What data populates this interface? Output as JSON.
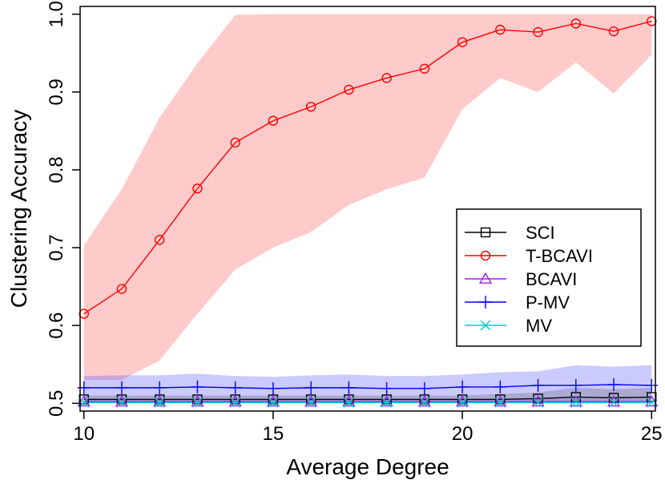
{
  "chart_data": {
    "type": "line",
    "title": "",
    "xlabel": "Average Degree",
    "ylabel": "Clustering Accuracy",
    "xlim": [
      9.9,
      25.1
    ],
    "ylim": [
      0.49,
      1.01
    ],
    "xticks": [
      10,
      15,
      20,
      25
    ],
    "xtick_labels": [
      "10",
      "15",
      "20",
      "25"
    ],
    "yticks": [
      0.5,
      0.6,
      0.7,
      0.8,
      0.9,
      1.0
    ],
    "ytick_labels": [
      "0.5",
      "0.6",
      "0.7",
      "0.8",
      "0.9",
      "1.0"
    ],
    "grid": false,
    "legend_position": "center-right",
    "x": [
      10,
      11,
      12,
      13,
      14,
      15,
      16,
      17,
      18,
      19,
      20,
      21,
      22,
      23,
      24,
      25
    ],
    "series": [
      {
        "name": "SCI",
        "marker": "square",
        "color": "#000000",
        "band_color": "rgba(70,70,70,0.25)",
        "values": [
          0.505,
          0.505,
          0.505,
          0.505,
          0.505,
          0.505,
          0.505,
          0.505,
          0.505,
          0.505,
          0.505,
          0.505,
          0.506,
          0.508,
          0.507,
          0.508
        ],
        "lower": [
          0.5,
          0.5,
          0.5,
          0.5,
          0.5,
          0.5,
          0.5,
          0.5,
          0.5,
          0.5,
          0.5,
          0.5,
          0.5,
          0.5,
          0.5,
          0.5
        ],
        "upper": [
          0.51,
          0.51,
          0.51,
          0.51,
          0.51,
          0.51,
          0.51,
          0.51,
          0.51,
          0.51,
          0.51,
          0.512,
          0.514,
          0.52,
          0.518,
          0.52
        ]
      },
      {
        "name": "T-BCAVI",
        "marker": "circle",
        "color": "#ff0000",
        "band_color": "rgba(255,90,90,0.32)",
        "values": [
          0.615,
          0.647,
          0.71,
          0.776,
          0.835,
          0.863,
          0.881,
          0.903,
          0.918,
          0.93,
          0.964,
          0.98,
          0.977,
          0.988,
          0.978,
          0.991
        ],
        "lower": [
          0.53,
          0.53,
          0.555,
          0.615,
          0.672,
          0.7,
          0.72,
          0.755,
          0.775,
          0.79,
          0.878,
          0.918,
          0.9,
          0.938,
          0.898,
          0.948
        ],
        "upper": [
          0.703,
          0.775,
          0.867,
          0.937,
          0.999,
          1.0,
          1.0,
          1.0,
          1.0,
          1.0,
          1.0,
          1.0,
          1.0,
          1.0,
          1.0,
          1.0
        ]
      },
      {
        "name": "BCAVI",
        "marker": "triangle",
        "color": "#a020f0",
        "band_color": "rgba(160,32,240,0.18)",
        "values": [
          0.502,
          0.502,
          0.502,
          0.502,
          0.502,
          0.502,
          0.502,
          0.502,
          0.502,
          0.502,
          0.502,
          0.502,
          0.502,
          0.502,
          0.502,
          0.502
        ],
        "lower": [
          0.5,
          0.5,
          0.5,
          0.5,
          0.5,
          0.5,
          0.5,
          0.5,
          0.5,
          0.5,
          0.5,
          0.5,
          0.5,
          0.5,
          0.5,
          0.5
        ],
        "upper": [
          0.505,
          0.505,
          0.505,
          0.505,
          0.505,
          0.505,
          0.505,
          0.505,
          0.505,
          0.505,
          0.505,
          0.505,
          0.505,
          0.505,
          0.505,
          0.505
        ]
      },
      {
        "name": "P-MV",
        "marker": "plus",
        "color": "#0000ff",
        "band_color": "rgba(90,90,255,0.32)",
        "values": [
          0.52,
          0.52,
          0.52,
          0.521,
          0.52,
          0.519,
          0.52,
          0.52,
          0.519,
          0.519,
          0.521,
          0.521,
          0.523,
          0.523,
          0.524,
          0.523
        ],
        "lower": [
          0.502,
          0.502,
          0.502,
          0.502,
          0.502,
          0.502,
          0.502,
          0.502,
          0.502,
          0.502,
          0.502,
          0.502,
          0.502,
          0.502,
          0.502,
          0.502
        ],
        "upper": [
          0.535,
          0.536,
          0.536,
          0.538,
          0.535,
          0.534,
          0.536,
          0.537,
          0.535,
          0.535,
          0.537,
          0.54,
          0.541,
          0.549,
          0.547,
          0.549
        ]
      },
      {
        "name": "MV",
        "marker": "cross",
        "color": "#00cccc",
        "band_color": "rgba(0,220,220,0.18)",
        "values": [
          0.501,
          0.501,
          0.501,
          0.501,
          0.501,
          0.501,
          0.501,
          0.501,
          0.501,
          0.501,
          0.501,
          0.501,
          0.501,
          0.501,
          0.501,
          0.501
        ],
        "lower": [
          0.5,
          0.5,
          0.5,
          0.5,
          0.5,
          0.5,
          0.5,
          0.5,
          0.5,
          0.5,
          0.5,
          0.5,
          0.5,
          0.5,
          0.5,
          0.5
        ],
        "upper": [
          0.503,
          0.503,
          0.503,
          0.503,
          0.503,
          0.503,
          0.503,
          0.503,
          0.503,
          0.503,
          0.503,
          0.503,
          0.503,
          0.503,
          0.503,
          0.503
        ]
      }
    ]
  }
}
